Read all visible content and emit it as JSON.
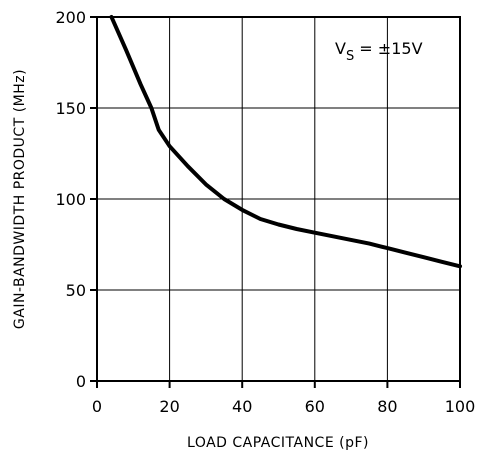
{
  "chart_data": {
    "type": "line",
    "title": "",
    "xlabel": "LOAD CAPACITANCE (pF)",
    "ylabel": "GAIN-BANDWIDTH PRODUCT (MHz)",
    "xlim": [
      0,
      100
    ],
    "ylim": [
      0,
      200
    ],
    "x_ticks": [
      0,
      20,
      40,
      60,
      80,
      100
    ],
    "y_ticks": [
      0,
      50,
      100,
      150,
      200
    ],
    "grid": true,
    "annotation": {
      "main": "V",
      "subscript": "S",
      "rest": " = ±15V"
    },
    "series": [
      {
        "x": [
          4,
          8,
          12,
          15,
          17,
          20,
          25,
          30,
          35,
          40,
          45,
          50,
          55,
          60,
          65,
          70,
          75,
          80,
          85,
          90,
          95,
          100
        ],
        "y": [
          200,
          182,
          163,
          150,
          138,
          129,
          118,
          108,
          100,
          94,
          89,
          86,
          83.5,
          81.5,
          79.5,
          77.5,
          75.5,
          73,
          70.5,
          68,
          65.5,
          63
        ]
      }
    ]
  }
}
